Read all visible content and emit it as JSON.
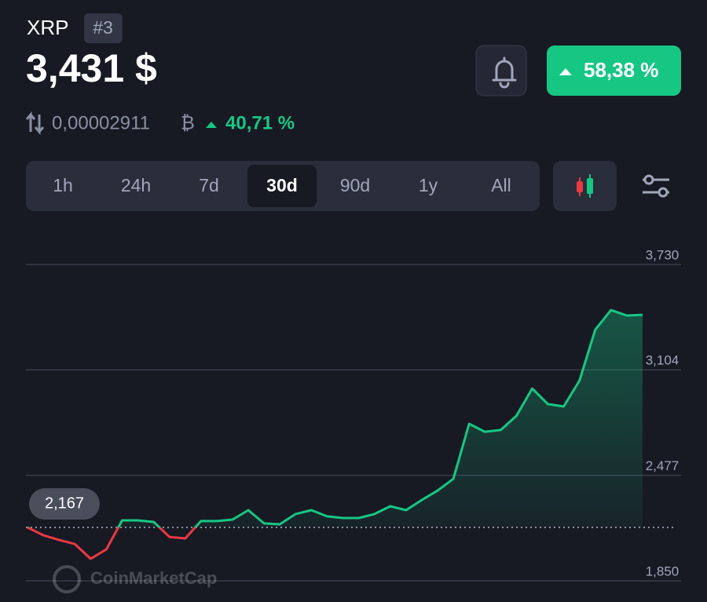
{
  "header": {
    "coin": "XRP",
    "rank": "#3",
    "price": "3,431 $",
    "btc_price": "0,00002911",
    "btc_symbol": "₿",
    "btc_change": "40,71 %",
    "change": "58,38 %"
  },
  "tabs": [
    "1h",
    "24h",
    "7d",
    "30d",
    "90d",
    "1y",
    "All"
  ],
  "active_tab_index": 3,
  "watermark": "CoinMarketCap",
  "chart_data": {
    "type": "line",
    "values": [
      2.167,
      2.121,
      2.093,
      2.069,
      1.981,
      2.037,
      2.209,
      2.209,
      2.2,
      2.111,
      2.102,
      2.205,
      2.205,
      2.214,
      2.27,
      2.191,
      2.186,
      2.247,
      2.27,
      2.233,
      2.223,
      2.223,
      2.247,
      2.293,
      2.27,
      2.33,
      2.386,
      2.456,
      2.783,
      2.736,
      2.746,
      2.83,
      2.993,
      2.9,
      2.886,
      3.04,
      3.343,
      3.459,
      3.427,
      3.431
    ],
    "up_color": "#16c784",
    "down_color": "#ea3943",
    "reference": {
      "value": 2.167,
      "label": "2,167"
    },
    "ylim": [
      1.85,
      3.73
    ],
    "yticks": [
      {
        "value": 3.73,
        "label": "3,730"
      },
      {
        "value": 3.104,
        "label": "3,104"
      },
      {
        "value": 2.477,
        "label": "2,477"
      },
      {
        "value": 1.85,
        "label": "1,850"
      }
    ],
    "grid": true
  }
}
